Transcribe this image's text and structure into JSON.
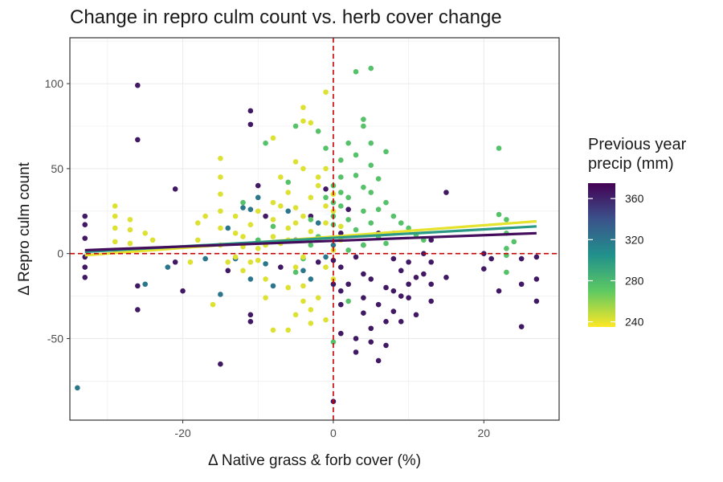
{
  "chart_data": {
    "type": "scatter",
    "title": "Change in repro culm count vs. herb cover change",
    "xlabel": "Δ Native grass & forb cover (%)",
    "ylabel": "Δ Repro culm count",
    "xlim": [
      -35,
      30
    ],
    "ylim": [
      -98,
      127
    ],
    "x_ticks": [
      -20,
      0,
      20
    ],
    "y_ticks": [
      -50,
      0,
      50,
      100
    ],
    "grid": true,
    "reference_lines": [
      {
        "axis": "x",
        "value": 0,
        "style": "dashed",
        "color": "#cc0000"
      },
      {
        "axis": "y",
        "value": 0,
        "style": "dashed",
        "color": "#cc0000"
      }
    ],
    "legend": {
      "title": "Previous year precip (mm)",
      "title_lines": [
        "Previous year",
        "precip (mm)"
      ],
      "placement": "right",
      "range": [
        235,
        375
      ],
      "ticks": [
        240,
        280,
        320,
        360
      ],
      "colors": [
        "#440154",
        "#3b528b",
        "#21918c",
        "#5ec962",
        "#fde725"
      ]
    },
    "trend_lines": [
      {
        "color_value": 240,
        "x": [
          -33,
          27
        ],
        "y": [
          -1,
          19
        ]
      },
      {
        "color_value": 300,
        "x": [
          -33,
          27
        ],
        "y": [
          1,
          16
        ]
      },
      {
        "color_value": 370,
        "x": [
          -33,
          27
        ],
        "y": [
          2,
          12
        ]
      }
    ],
    "groups": [
      {
        "color_value": 365,
        "points": [
          [
            -33,
            22
          ],
          [
            -33,
            17
          ],
          [
            -33,
            9
          ],
          [
            -33,
            -2
          ],
          [
            -33,
            -8
          ],
          [
            -33,
            -14
          ],
          [
            -26,
            99
          ],
          [
            -26,
            67
          ],
          [
            -26,
            -19
          ],
          [
            -26,
            -33
          ],
          [
            -21,
            38
          ],
          [
            -21,
            -5
          ],
          [
            -20,
            -22
          ],
          [
            -15,
            -65
          ],
          [
            -14,
            -10
          ],
          [
            -11,
            84
          ],
          [
            -11,
            76
          ],
          [
            -11,
            -36
          ],
          [
            -11,
            -40
          ],
          [
            -10,
            40
          ],
          [
            -9,
            22
          ],
          [
            -7,
            -8
          ],
          [
            -3,
            22
          ],
          [
            -2,
            -5
          ],
          [
            -1,
            38
          ],
          [
            0,
            -87
          ],
          [
            0,
            -4
          ],
          [
            0,
            -18
          ],
          [
            1,
            -8
          ],
          [
            1,
            -22
          ],
          [
            1,
            -30
          ],
          [
            1,
            -47
          ],
          [
            2,
            -18
          ],
          [
            3,
            -2
          ],
          [
            3,
            -50
          ],
          [
            3,
            -58
          ],
          [
            4,
            -12
          ],
          [
            4,
            -26
          ],
          [
            4,
            -35
          ],
          [
            5,
            -15
          ],
          [
            5,
            -44
          ],
          [
            5,
            -52
          ],
          [
            6,
            -30
          ],
          [
            6,
            -63
          ],
          [
            7,
            -20
          ],
          [
            7,
            -40
          ],
          [
            7,
            -54
          ],
          [
            8,
            -3
          ],
          [
            8,
            -22
          ],
          [
            8,
            -34
          ],
          [
            9,
            -10
          ],
          [
            9,
            -25
          ],
          [
            9,
            -40
          ],
          [
            10,
            -5
          ],
          [
            10,
            -18
          ],
          [
            10,
            -26
          ],
          [
            11,
            -14
          ],
          [
            11,
            -36
          ],
          [
            12,
            0
          ],
          [
            12,
            -12
          ],
          [
            13,
            8
          ],
          [
            13,
            -5
          ],
          [
            13,
            -18
          ],
          [
            13,
            -28
          ],
          [
            15,
            36
          ],
          [
            15,
            -14
          ],
          [
            20,
            0
          ],
          [
            20,
            -9
          ],
          [
            21,
            -3
          ],
          [
            22,
            -22
          ],
          [
            25,
            -3
          ],
          [
            25,
            -18
          ],
          [
            25,
            -43
          ],
          [
            27,
            -2
          ],
          [
            27,
            -15
          ],
          [
            27,
            -28
          ],
          [
            1,
            12
          ],
          [
            2,
            26
          ],
          [
            6,
            12
          ],
          [
            4,
            5
          ]
        ]
      },
      {
        "color_value": 320,
        "points": [
          [
            -25,
            -18
          ],
          [
            -22,
            -8
          ],
          [
            -17,
            -3
          ],
          [
            -14,
            15
          ],
          [
            -12,
            27
          ],
          [
            -11,
            26
          ],
          [
            -10,
            33
          ],
          [
            -9,
            -6
          ],
          [
            -6,
            25
          ],
          [
            -5,
            8
          ],
          [
            -4,
            -10
          ],
          [
            -2,
            18
          ],
          [
            -1,
            -2
          ],
          [
            0,
            5
          ],
          [
            -11,
            -15
          ],
          [
            -13,
            -3
          ],
          [
            -34,
            -79
          ],
          [
            -3,
            -15
          ],
          [
            -8,
            -19
          ],
          [
            -15,
            -24
          ]
        ]
      },
      {
        "color_value": 275,
        "points": [
          [
            -10,
            8
          ],
          [
            -8,
            16
          ],
          [
            -6,
            42
          ],
          [
            -5,
            -11
          ],
          [
            -4,
            -3
          ],
          [
            -3,
            5
          ],
          [
            -2,
            10
          ],
          [
            -1,
            33
          ],
          [
            0,
            17
          ],
          [
            0,
            22
          ],
          [
            1,
            28
          ],
          [
            1,
            45
          ],
          [
            1,
            55
          ],
          [
            2,
            20
          ],
          [
            2,
            33
          ],
          [
            2,
            65
          ],
          [
            2,
            -28
          ],
          [
            3,
            107
          ],
          [
            3,
            14
          ],
          [
            3,
            46
          ],
          [
            3,
            58
          ],
          [
            4,
            5
          ],
          [
            4,
            25
          ],
          [
            4,
            39
          ],
          [
            4,
            79
          ],
          [
            4,
            75
          ],
          [
            5,
            109
          ],
          [
            5,
            18
          ],
          [
            5,
            36
          ],
          [
            5,
            52
          ],
          [
            5,
            65
          ],
          [
            6,
            10
          ],
          [
            6,
            26
          ],
          [
            6,
            44
          ],
          [
            7,
            6
          ],
          [
            7,
            30
          ],
          [
            7,
            60
          ],
          [
            8,
            22
          ],
          [
            8,
            12
          ],
          [
            9,
            18
          ],
          [
            10,
            15
          ],
          [
            11,
            11
          ],
          [
            12,
            8
          ],
          [
            22,
            62
          ],
          [
            22,
            23
          ],
          [
            23,
            20
          ],
          [
            23,
            12
          ],
          [
            23,
            3
          ],
          [
            23,
            -1
          ],
          [
            23,
            -11
          ],
          [
            24,
            7
          ],
          [
            -1,
            62
          ],
          [
            -2,
            72
          ],
          [
            0,
            40
          ],
          [
            1,
            36
          ],
          [
            0,
            30
          ],
          [
            2,
            2
          ],
          [
            -5,
            75
          ],
          [
            -9,
            65
          ],
          [
            -12,
            30
          ],
          [
            0,
            -52
          ],
          [
            -3,
            20
          ]
        ]
      },
      {
        "color_value": 242,
        "points": [
          [
            -29,
            28
          ],
          [
            -29,
            22
          ],
          [
            -29,
            15
          ],
          [
            -29,
            7
          ],
          [
            -29,
            2
          ],
          [
            -27,
            20
          ],
          [
            -27,
            14
          ],
          [
            -27,
            6
          ],
          [
            -25,
            12
          ],
          [
            -24,
            8
          ],
          [
            -19,
            -5
          ],
          [
            -18,
            18
          ],
          [
            -18,
            8
          ],
          [
            -17,
            22
          ],
          [
            -16,
            -30
          ],
          [
            -15,
            56
          ],
          [
            -15,
            45
          ],
          [
            -15,
            35
          ],
          [
            -15,
            25
          ],
          [
            -15,
            15
          ],
          [
            -15,
            5
          ],
          [
            -14,
            -5
          ],
          [
            -13,
            22
          ],
          [
            -13,
            12
          ],
          [
            -13,
            -2
          ],
          [
            -12,
            10
          ],
          [
            -12,
            -10
          ],
          [
            -11,
            17
          ],
          [
            -11,
            -5
          ],
          [
            -10,
            25
          ],
          [
            -10,
            -4
          ],
          [
            -9,
            5
          ],
          [
            -9,
            -15
          ],
          [
            -8,
            30
          ],
          [
            -8,
            20
          ],
          [
            -8,
            10
          ],
          [
            -8,
            -45
          ],
          [
            -7,
            45
          ],
          [
            -7,
            28
          ],
          [
            -7,
            6
          ],
          [
            -6,
            36
          ],
          [
            -6,
            15
          ],
          [
            -6,
            -20
          ],
          [
            -6,
            -45
          ],
          [
            -5,
            27
          ],
          [
            -5,
            18
          ],
          [
            -5,
            -8
          ],
          [
            -4,
            78
          ],
          [
            -4,
            86
          ],
          [
            -4,
            50
          ],
          [
            -4,
            22
          ],
          [
            -4,
            -2
          ],
          [
            -4,
            -28
          ],
          [
            -3,
            77
          ],
          [
            -3,
            33
          ],
          [
            -3,
            13
          ],
          [
            -3,
            -41
          ],
          [
            -2,
            40
          ],
          [
            -2,
            8
          ],
          [
            -2,
            -26
          ],
          [
            -1,
            50
          ],
          [
            -1,
            28
          ],
          [
            -1,
            18
          ],
          [
            -1,
            -8
          ],
          [
            -1,
            -39
          ],
          [
            -1,
            95
          ],
          [
            0,
            35
          ],
          [
            0,
            25
          ],
          [
            0,
            2
          ],
          [
            0,
            -15
          ],
          [
            1,
            16
          ],
          [
            1,
            8
          ],
          [
            -4,
            -19
          ],
          [
            -5,
            -36
          ],
          [
            -3,
            -33
          ],
          [
            -8,
            68
          ],
          [
            -5,
            54
          ],
          [
            -2,
            45
          ],
          [
            -6,
            8
          ],
          [
            -10,
            3
          ],
          [
            -12,
            4
          ],
          [
            -9,
            -26
          ]
        ]
      }
    ]
  }
}
